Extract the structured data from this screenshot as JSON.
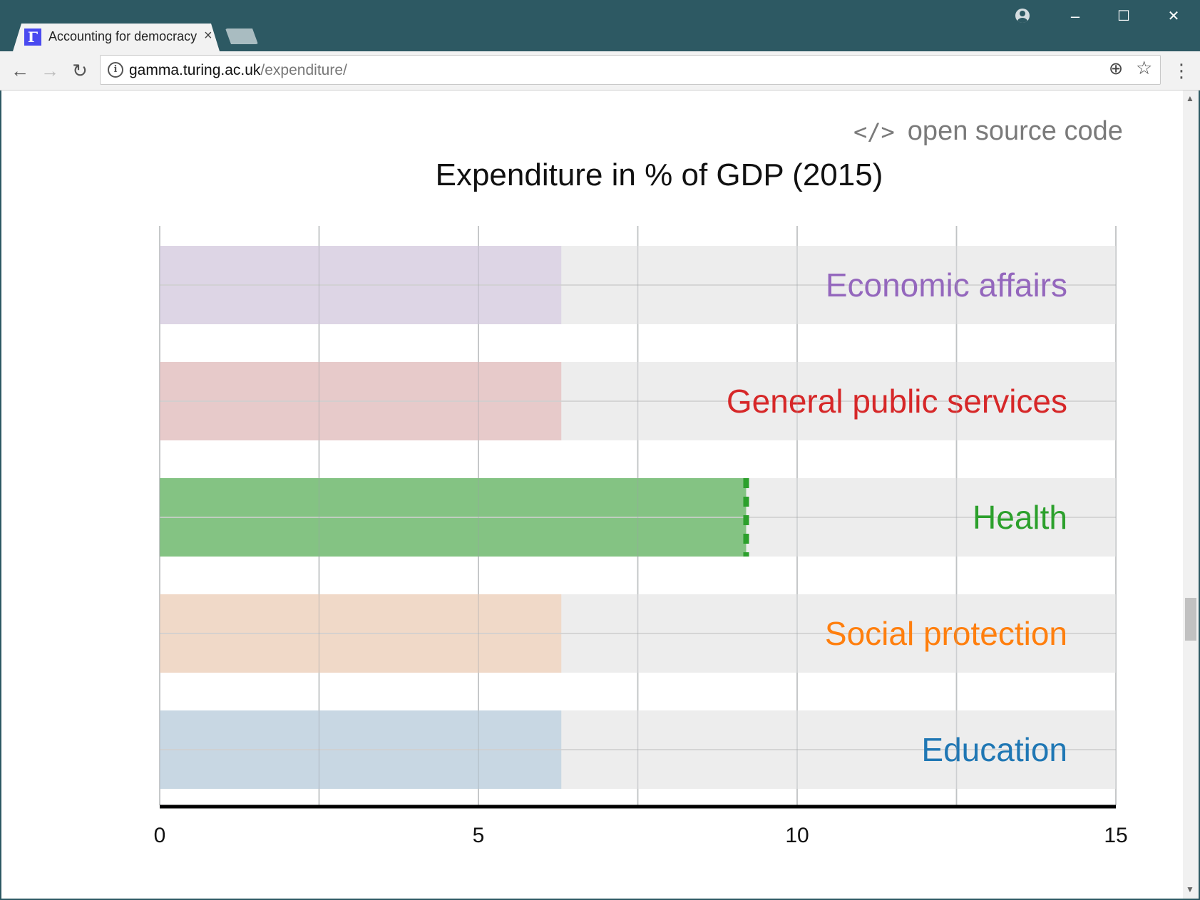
{
  "browser": {
    "tab_title": "Accounting for democracy",
    "tab_close": "×",
    "favicon_letter": "Γ",
    "url_host": "gamma.turing.ac.uk",
    "url_path": "/expenditure/",
    "window_minimize": "–",
    "window_maximize": "☐",
    "window_close": "✕",
    "back": "←",
    "forward": "→",
    "reload": "↻",
    "menu": "⋮",
    "zoom_icon": "⊕",
    "star_icon": "☆",
    "info_icon": "i"
  },
  "page": {
    "source_link_icon": "</>",
    "source_link_label": "open source code"
  },
  "chart_data": {
    "type": "bar",
    "title": "Expenditure in % of GDP (2015)",
    "orientation": "horizontal",
    "xlim": [
      0,
      15
    ],
    "xticks": [
      0,
      5,
      10,
      15
    ],
    "grid": true,
    "categories": [
      "Economic affairs",
      "General public services",
      "Health",
      "Social protection",
      "Education"
    ],
    "values": [
      6.3,
      6.3,
      9.2,
      6.3,
      6.3
    ],
    "highlighted": "Health",
    "colors": [
      "#9467bd",
      "#d62728",
      "#2ca02c",
      "#ff7f0e",
      "#1f77b4"
    ],
    "bar_fill_colors": [
      "#dbd2e4",
      "#e6c7c7",
      "#7bbf79",
      "#f0d7c4",
      "#c4d5e2"
    ],
    "track_color": "#ebebeb"
  }
}
